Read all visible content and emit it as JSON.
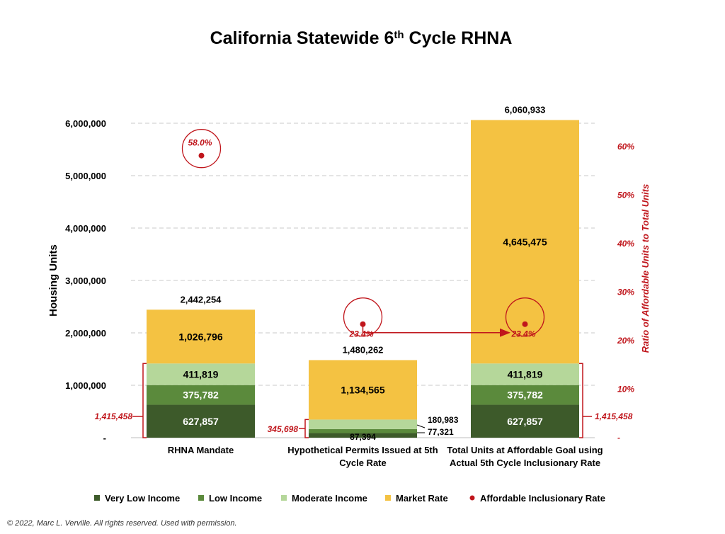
{
  "chart_data": {
    "type": "bar",
    "stacked": true,
    "title_main": "California Statewide 6",
    "title_sup": "th",
    "title_rest": " Cycle RHNA",
    "ylabel": "Housing Units",
    "y2label": "Ratio of Affordable Units to Total Units",
    "ylim": [
      0,
      6000000
    ],
    "y2lim": [
      0,
      0.65
    ],
    "yticks": [
      "-",
      "1,000,000",
      "2,000,000",
      "3,000,000",
      "4,000,000",
      "5,000,000",
      "6,000,000"
    ],
    "y2ticks": [
      "-",
      "10%",
      "20%",
      "30%",
      "40%",
      "50%",
      "60%"
    ],
    "grid": true,
    "legend_position": "bottom",
    "categories": [
      [
        "RHNA Mandate"
      ],
      [
        "Hypothetical Permits Issued at 5th",
        "Cycle Rate"
      ],
      [
        "Total Units at Affordable Goal using",
        "Actual 5th Cycle Inclusionary Rate"
      ]
    ],
    "series": [
      {
        "name": "Very Low Income",
        "color": "#3d5a2a",
        "values": [
          627857,
          87394,
          627857
        ],
        "labels": [
          "627,857",
          "87,394",
          "627,857"
        ]
      },
      {
        "name": "Low Income",
        "color": "#5b8a3c",
        "values": [
          375782,
          77321,
          375782
        ],
        "labels": [
          "375,782",
          "77,321",
          "375,782"
        ]
      },
      {
        "name": "Moderate Income",
        "color": "#b5d79a",
        "values": [
          411819,
          180983,
          411819
        ],
        "labels": [
          "411,819",
          "180,983",
          "411,819"
        ]
      },
      {
        "name": "Market Rate",
        "color": "#f4c242",
        "values": [
          1026796,
          1134565,
          4645475
        ],
        "labels": [
          "1,026,796",
          "1,134,565",
          "4,645,475"
        ]
      }
    ],
    "totals": [
      "2,442,254",
      "1,480,262",
      "6,060,933"
    ],
    "affordable_rate": {
      "name": "Affordable Inclusionary Rate",
      "color": "#c0161c",
      "values": [
        0.58,
        0.234,
        0.234
      ],
      "labels": [
        "58.0%",
        "23.4%",
        "23.4%"
      ]
    },
    "affordable_totals": [
      "1,415,458",
      "345,698",
      "1,415,458"
    ]
  },
  "footer": "© 2022, Marc L. Verville.  All rights reserved.  Used with permission."
}
